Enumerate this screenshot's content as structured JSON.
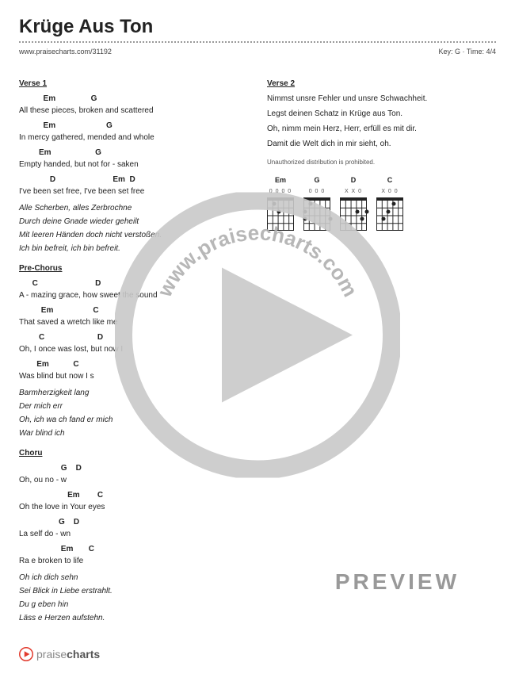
{
  "title": "Krüge Aus Ton",
  "url": "www.praisecharts.com/31192",
  "key_label": "Key: G · Time: 4/4",
  "sections": {
    "verse1": {
      "title": "Verse 1",
      "lines": [
        {
          "chords": "           Em                G",
          "lyric": "All these pieces, broken and scattered"
        },
        {
          "chords": "           Em                       G",
          "lyric": "In mercy gathered, mended and whole"
        },
        {
          "chords": "         Em                    G",
          "lyric": "Empty handed, but not for - saken"
        },
        {
          "chords": "              D                          Em  D",
          "lyric": "I've been set free, I've been set free"
        }
      ],
      "italic": [
        "Alle Scherben, alles Zerbrochne",
        "Durch deine Gnade wieder geheilt",
        "Mit leeren Händen doch nicht verstoßen.",
        "Ich bin befreit, ich bin befreit."
      ]
    },
    "prechorus": {
      "title": "Pre-Chorus",
      "lines": [
        {
          "chords": "      C                          D",
          "lyric": "A - mazing grace, how sweet the sound"
        },
        {
          "chords": "          Em                  C",
          "lyric": "That saved a wretch like me"
        },
        {
          "chords": "         C                        D",
          "lyric": "Oh, I once was lost, but now I"
        },
        {
          "chords": "        Em           C",
          "lyric": "Was blind but now I s"
        }
      ],
      "italic": [
        "Barmherzigkeit                      lang",
        "Der mich err",
        "Oh, ich wa                  ch fand er mich",
        "War blind              ich"
      ]
    },
    "chorus": {
      "title": "Choru",
      "lines": [
        {
          "chords": "                   G    D",
          "lyric": "Oh,              ou no - w"
        },
        {
          "chords": "                      Em        C",
          "lyric": "Oh              the love in Your eyes"
        },
        {
          "chords": "                  G    D",
          "lyric": "La           self do - wn"
        },
        {
          "chords": "                   Em       C",
          "lyric": "Ra             e broken to life"
        }
      ],
      "italic": [
        "Oh                ich dich sehn",
        "Sei             Blick in Liebe erstrahlt.",
        "Du g            eben hin",
        "Läss              e Herzen aufstehn."
      ]
    },
    "verse2": {
      "title": "Verse 2",
      "lines": [
        "Nimmst unsre Fehler und unsre Schwachheit.",
        "Legst deinen Schatz in Krüge aus Ton.",
        "Oh, nimm mein Herz, Herr, erfüll es mit dir.",
        "Damit die Welt dich in mir sieht, oh."
      ]
    }
  },
  "disclaimer": "Unauthorized distribution is prohibited.",
  "chords": [
    {
      "name": "Em",
      "nut": "0   0 0 0",
      "dots": [
        [
          1,
          8.5
        ],
        [
          2,
          15
        ]
      ]
    },
    {
      "name": "G",
      "nut": "       0 0 0",
      "dots": [
        [
          1,
          8.5
        ],
        [
          2,
          2
        ],
        [
          3,
          34
        ],
        [
          3,
          1.5
        ]
      ]
    },
    {
      "name": "D",
      "nut": "X X 0",
      "dots": [
        [
          2,
          22
        ],
        [
          2,
          34
        ],
        [
          3,
          28
        ]
      ]
    },
    {
      "name": "C",
      "nut": "X     0   0",
      "dots": [
        [
          1,
          22
        ],
        [
          2,
          15
        ],
        [
          3,
          8.5
        ]
      ]
    }
  ],
  "watermark_text": "www.praisecharts.com",
  "preview": "PREVIEW",
  "footer": {
    "brand_light": "praise",
    "brand_bold": "charts"
  },
  "colors": {
    "text": "#222222",
    "muted": "#888888",
    "watermark": "#b9b9b9",
    "accent": "#e23b2e"
  }
}
